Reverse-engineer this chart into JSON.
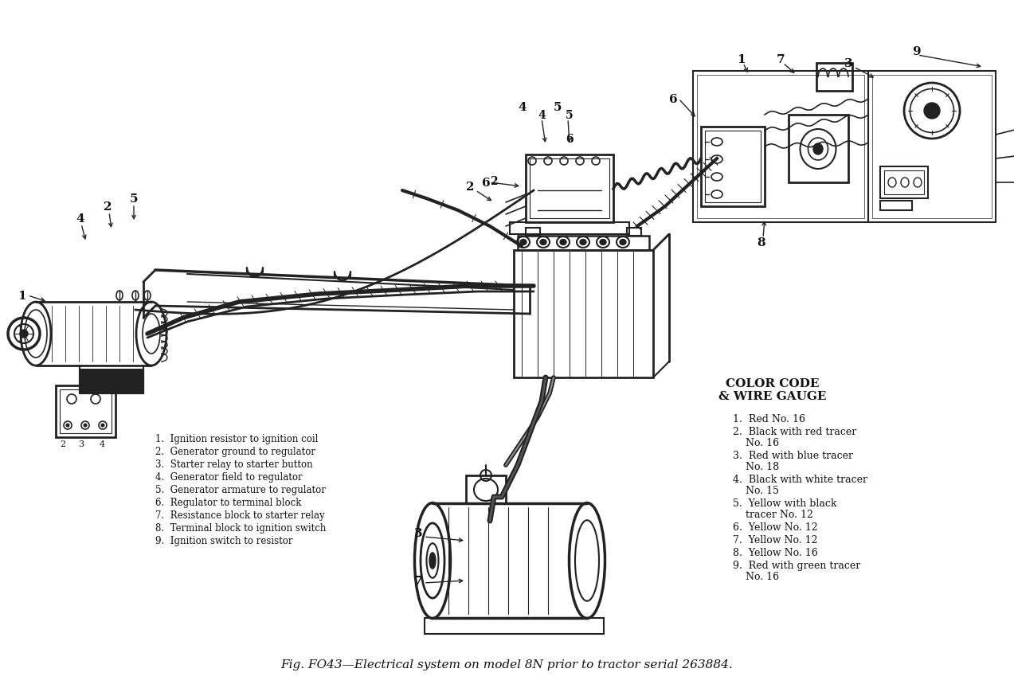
{
  "title": "Fig. FO43—Electrical system on model 8N prior to tractor serial 263884.",
  "background_color": "#ffffff",
  "wire_legend_title": "COLOR CODE\n& WIRE GAUGE",
  "wire_legend_items": [
    "1.  Red No. 16",
    "2.  Black with red tracer\n    No. 16",
    "3.  Red with blue tracer\n    No. 18",
    "4.  Black with white tracer\n    No. 15",
    "5.  Yellow with black\n    tracer No. 12",
    "6.  Yellow No. 12",
    "7.  Yellow No. 12",
    "8.  Yellow No. 16",
    "9.  Red with green tracer\n    No. 16"
  ],
  "connection_legend_items": [
    "1.  Ignition resistor to ignition coil",
    "2.  Generator ground to regulator",
    "3.  Starter relay to starter button",
    "4.  Generator field to regulator",
    "5.  Generator armature to regulator",
    "6.  Regulator to terminal block",
    "7.  Resistance block to starter relay",
    "8.  Terminal block to ignition switch",
    "9.  Ignition switch to resistor"
  ],
  "font_color": "#111111",
  "diagram_color": "#222222"
}
